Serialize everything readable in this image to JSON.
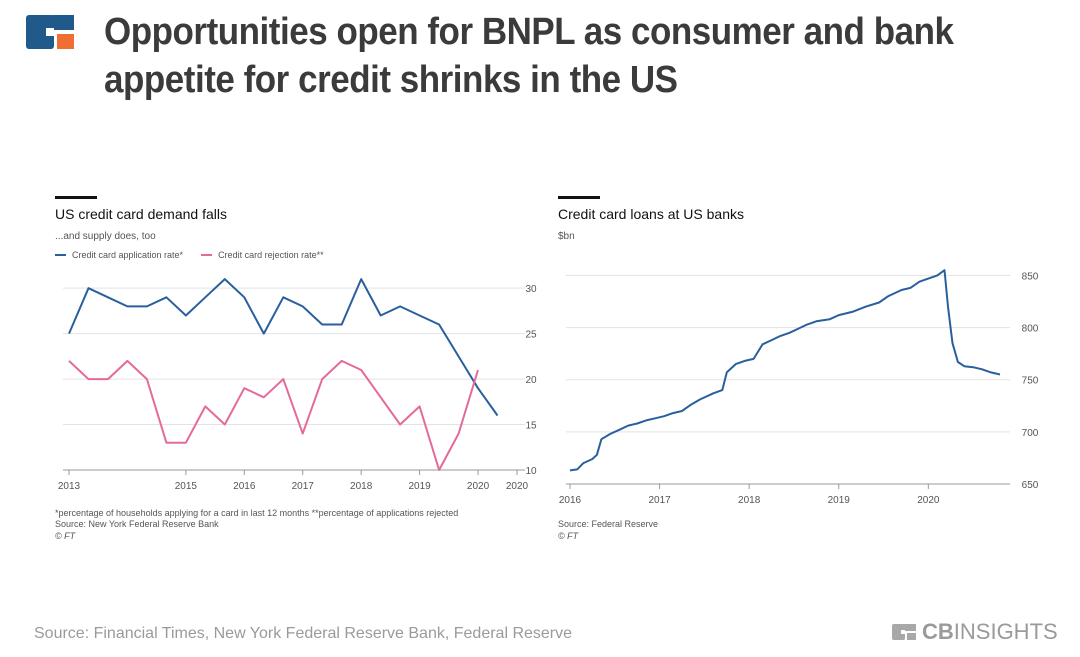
{
  "header": {
    "title": "Opportunities open for BNPL as consumer and bank appetite for credit shrinks in the US"
  },
  "footer": {
    "source": "Source: Financial Times, New York Federal Reserve Bank, Federal Reserve",
    "brand_bold": "CB",
    "brand_rest": "INSIGHTS"
  },
  "colors": {
    "blue": "#2a5f9e",
    "pink": "#e46a9c",
    "logo_blue": "#1f5a8a",
    "logo_orange": "#ee6e34"
  },
  "left": {
    "title": "US credit card demand falls",
    "subtitle": "...and supply does, too",
    "footnote": "*percentage of households applying for a card in last 12 months **percentage of applications rejected",
    "source": "Source: New York Federal Reserve Bank",
    "copyright": "© FT"
  },
  "right": {
    "title": "Credit card loans at US banks",
    "subtitle": "$bn",
    "source": "Source: Federal Reserve",
    "copyright": "© FT"
  },
  "chart_data": [
    {
      "type": "line",
      "title": "US credit card demand falls",
      "subtitle": "...and supply does, too",
      "x": [
        2013,
        2013.33,
        2013.67,
        2014,
        2014.33,
        2014.67,
        2015,
        2015.33,
        2015.67,
        2016,
        2016.33,
        2016.67,
        2017,
        2017.33,
        2017.67,
        2018,
        2018.33,
        2018.67,
        2019,
        2019.33,
        2019.67,
        2020,
        2020.33,
        2020.67
      ],
      "x_ticks": [
        "2013",
        "2015",
        "2016",
        "2017",
        "2018",
        "2019",
        "2020",
        "2020"
      ],
      "ylim": [
        10,
        32
      ],
      "y_ticks": [
        10,
        15,
        20,
        25,
        30
      ],
      "series": [
        {
          "name": "Credit card application rate*",
          "color": "#2a5f9e",
          "values": [
            25,
            30,
            29,
            28,
            28,
            29,
            27,
            29,
            31,
            29,
            25,
            29,
            28,
            26,
            26,
            31,
            27,
            28,
            27,
            26,
            null,
            19,
            16,
            null
          ]
        },
        {
          "name": "Credit card rejection rate**",
          "color": "#e46a9c",
          "values": [
            22,
            20,
            20,
            22,
            20,
            13,
            13,
            17,
            15,
            19,
            18,
            20,
            14,
            20,
            22,
            21,
            18,
            15,
            17,
            10,
            14,
            21,
            null,
            null
          ]
        }
      ]
    },
    {
      "type": "line",
      "title": "Credit card loans at US banks",
      "ylabel": "$bn",
      "x_ticks": [
        "2016",
        "2017",
        "2018",
        "2019",
        "2020"
      ],
      "xlim": [
        2016,
        2020.8
      ],
      "ylim": [
        650,
        860
      ],
      "y_ticks": [
        650,
        700,
        750,
        800,
        850
      ],
      "series": [
        {
          "name": "Credit card loans",
          "color": "#2a5f9e",
          "x": [
            2016.0,
            2016.08,
            2016.15,
            2016.25,
            2016.3,
            2016.35,
            2016.45,
            2016.55,
            2016.65,
            2016.75,
            2016.85,
            2016.95,
            2017.05,
            2017.15,
            2017.25,
            2017.35,
            2017.45,
            2017.6,
            2017.7,
            2017.75,
            2017.85,
            2017.95,
            2018.05,
            2018.15,
            2018.25,
            2018.35,
            2018.45,
            2018.55,
            2018.65,
            2018.75,
            2018.9,
            2019.0,
            2019.15,
            2019.3,
            2019.45,
            2019.55,
            2019.7,
            2019.8,
            2019.9,
            2020.0,
            2020.1,
            2020.18,
            2020.22,
            2020.27,
            2020.33,
            2020.4,
            2020.5,
            2020.6,
            2020.7,
            2020.8
          ],
          "values": [
            663,
            664,
            670,
            674,
            678,
            693,
            698,
            702,
            706,
            708,
            711,
            713,
            715,
            718,
            720,
            726,
            731,
            737,
            740,
            757,
            765,
            768,
            770,
            784,
            788,
            792,
            795,
            799,
            803,
            806,
            808,
            812,
            815,
            820,
            824,
            830,
            836,
            838,
            844,
            847,
            850,
            855,
            820,
            785,
            767,
            763,
            762,
            760,
            757,
            755
          ]
        }
      ]
    }
  ]
}
